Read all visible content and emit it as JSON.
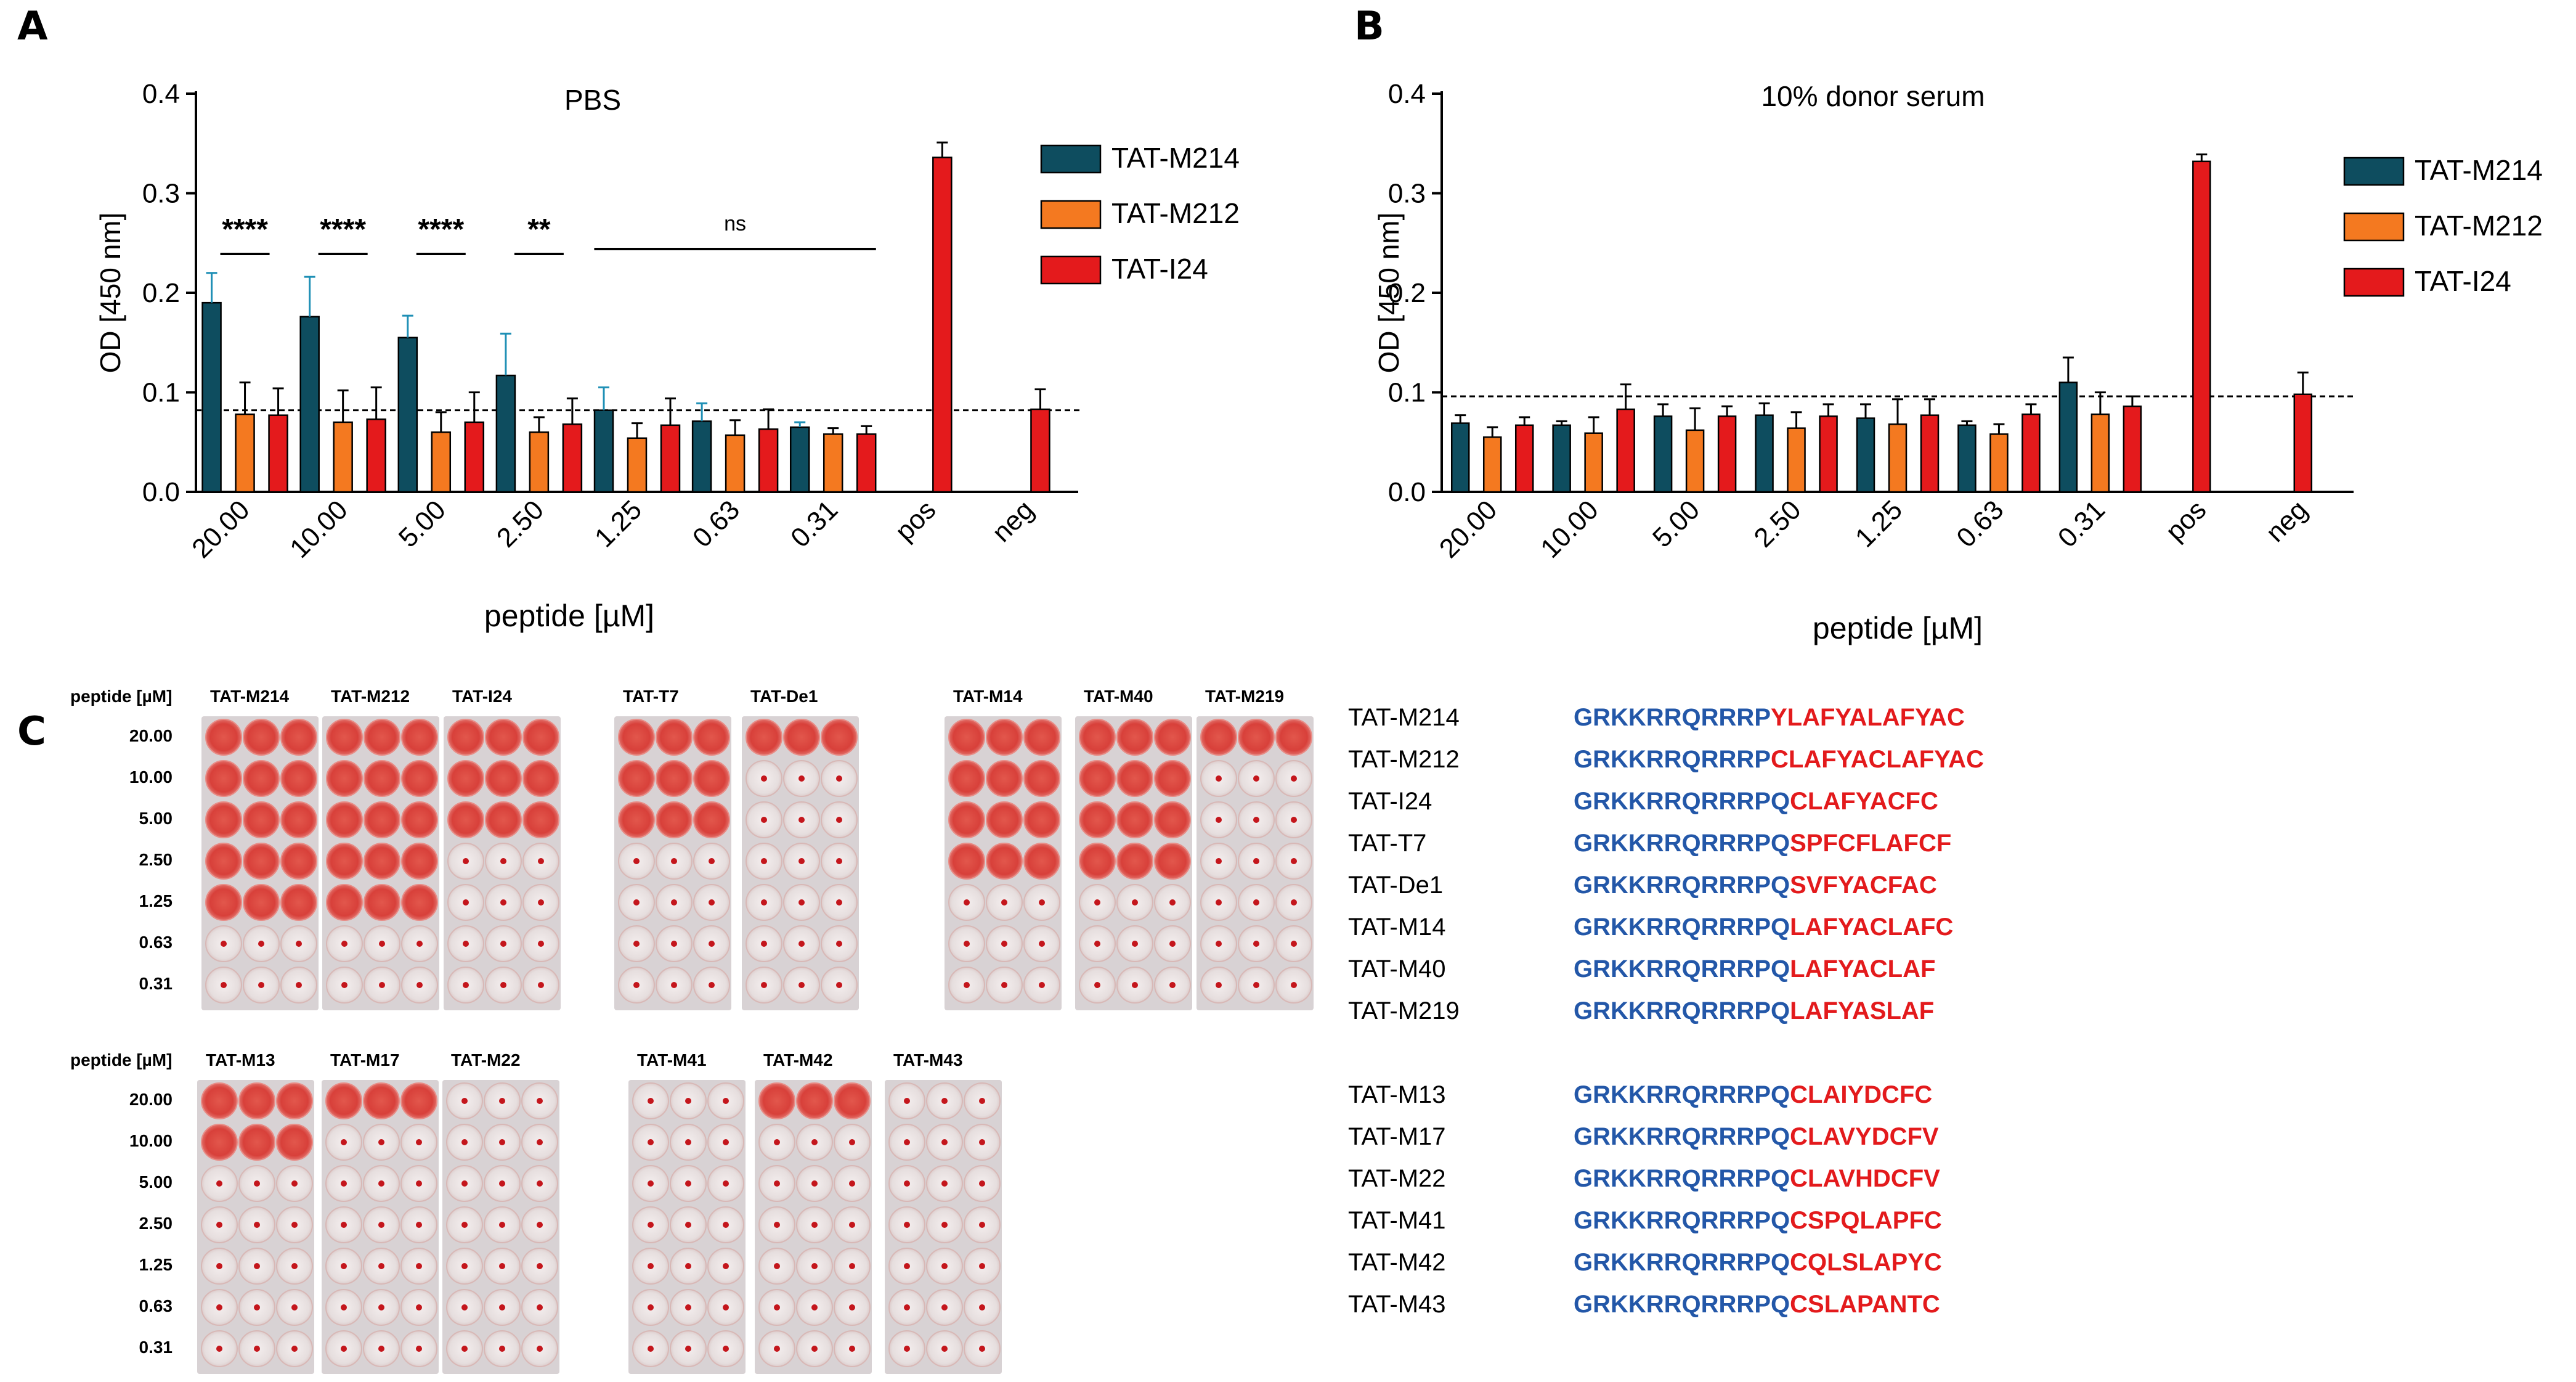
{
  "panels": {
    "a": "A",
    "b": "B",
    "c": "C"
  },
  "colors": {
    "M214": "#0e4d5f",
    "M212": "#f47920",
    "I24": "#e41a1c",
    "tat_seq": "#2357a8",
    "cargo_seq": "#e31a1c"
  },
  "chart_data": [
    {
      "type": "bar",
      "title": "PBS",
      "xlabel": "peptide [µM]",
      "ylabel": "OD [450 nm]",
      "ylim": [
        0,
        0.4
      ],
      "yticks": [
        "0.0",
        "0.1",
        "0.2",
        "0.3",
        "0.4"
      ],
      "categories": [
        "20.00",
        "10.00",
        "5.00",
        "2.50",
        "1.25",
        "0.63",
        "0.31",
        "pos",
        "neg"
      ],
      "series": [
        {
          "name": "TAT-M214",
          "values": [
            0.19,
            0.176,
            0.155,
            0.117,
            0.082,
            0.071,
            0.065,
            null,
            null
          ],
          "errors": [
            0.03,
            0.04,
            0.022,
            0.042,
            0.023,
            0.018,
            0.005,
            null,
            null
          ]
        },
        {
          "name": "TAT-M212",
          "values": [
            0.078,
            0.07,
            0.06,
            0.06,
            0.054,
            0.057,
            0.058,
            null,
            null
          ],
          "errors": [
            0.032,
            0.032,
            0.02,
            0.015,
            0.015,
            0.015,
            0.006,
            null,
            null
          ]
        },
        {
          "name": "TAT-I24",
          "values": [
            0.077,
            0.073,
            0.07,
            0.068,
            0.067,
            0.063,
            0.058,
            0.336,
            0.083
          ],
          "errors": [
            0.027,
            0.032,
            0.03,
            0.026,
            0.027,
            0.02,
            0.008,
            0.015,
            0.02
          ]
        }
      ],
      "threshold": 0.082,
      "legend": "top-right",
      "significance": [
        {
          "label": "****",
          "category": "20.00"
        },
        {
          "label": "****",
          "category": "10.00"
        },
        {
          "label": "****",
          "category": "5.00"
        },
        {
          "label": "**",
          "category": "2.50"
        },
        {
          "label": "ns",
          "from": "1.25",
          "to": "0.31"
        }
      ]
    },
    {
      "type": "bar",
      "title": "10% donor serum",
      "xlabel": "peptide [µM]",
      "ylabel": "OD [450 nm]",
      "ylim": [
        0,
        0.4
      ],
      "yticks": [
        "0.0",
        "0.1",
        "0.2",
        "0.3",
        "0.4"
      ],
      "categories": [
        "20.00",
        "10.00",
        "5.00",
        "2.50",
        "1.25",
        "0.63",
        "0.31",
        "pos",
        "neg"
      ],
      "series": [
        {
          "name": "TAT-M214",
          "values": [
            0.069,
            0.067,
            0.076,
            0.077,
            0.074,
            0.067,
            0.11,
            null,
            null
          ],
          "errors": [
            0.008,
            0.004,
            0.012,
            0.012,
            0.014,
            0.004,
            0.025,
            null,
            null
          ]
        },
        {
          "name": "TAT-M212",
          "values": [
            0.055,
            0.059,
            0.062,
            0.064,
            0.068,
            0.058,
            0.078,
            null,
            null
          ],
          "errors": [
            0.01,
            0.016,
            0.022,
            0.016,
            0.025,
            0.01,
            0.022,
            null,
            null
          ]
        },
        {
          "name": "TAT-I24",
          "values": [
            0.067,
            0.083,
            0.076,
            0.076,
            0.077,
            0.078,
            0.086,
            0.332,
            0.098
          ],
          "errors": [
            0.008,
            0.025,
            0.01,
            0.012,
            0.016,
            0.01,
            0.01,
            0.007,
            0.022
          ]
        }
      ],
      "threshold": 0.096,
      "legend": "top-right"
    }
  ],
  "plates": {
    "header_label": "peptide [µM]",
    "concentrations": [
      "20.00",
      "10.00",
      "5.00",
      "2.50",
      "1.25",
      "0.63",
      "0.31"
    ],
    "top_row": [
      {
        "name": "TAT-M214",
        "agglutination": 5
      },
      {
        "name": "TAT-M212",
        "agglutination": 5
      },
      {
        "name": "TAT-I24",
        "agglutination": 3
      },
      {
        "name": "TAT-T7",
        "agglutination": 3
      },
      {
        "name": "TAT-De1",
        "agglutination": 1
      },
      {
        "name": "TAT-M14",
        "agglutination": 4
      },
      {
        "name": "TAT-M40",
        "agglutination": 4
      },
      {
        "name": "TAT-M219",
        "agglutination": 1
      }
    ],
    "bottom_row": [
      {
        "name": "TAT-M13",
        "agglutination": 2
      },
      {
        "name": "TAT-M17",
        "agglutination": 1
      },
      {
        "name": "TAT-M22",
        "agglutination": 0
      },
      {
        "name": "TAT-M41",
        "agglutination": 0
      },
      {
        "name": "TAT-M42",
        "agglutination": 1
      },
      {
        "name": "TAT-M43",
        "agglutination": 0
      }
    ]
  },
  "sequences": [
    {
      "name": "TAT-M214",
      "tat": "GRKKRRQRRRP",
      "cargo": "YLAFYALAFYAC"
    },
    {
      "name": "TAT-M212",
      "tat": "GRKKRRQRRRP",
      "cargo": "CLAFYACLAFYAC"
    },
    {
      "name": "TAT-I24",
      "tat": "GRKKRRQRRRPQ",
      "cargo": "CLAFYACFC"
    },
    {
      "name": "TAT-T7",
      "tat": "GRKKRRQRRRPQ",
      "cargo": "SPFCFLAFCF"
    },
    {
      "name": "TAT-De1",
      "tat": "GRKKRRQRRRPQ",
      "cargo": "SVFYACFAC"
    },
    {
      "name": "TAT-M14",
      "tat": "GRKKRRQRRRPQ",
      "cargo": "LAFYACLAFC"
    },
    {
      "name": "TAT-M40",
      "tat": "GRKKRRQRRRPQ",
      "cargo": "LAFYACLAF"
    },
    {
      "name": "TAT-M219",
      "tat": "GRKKRRQRRRPQ",
      "cargo": "LAFYASLAF"
    },
    {
      "name": "TAT-M13",
      "tat": "GRKKRRQRRRPQ",
      "cargo": "CLAIYDCFC"
    },
    {
      "name": "TAT-M17",
      "tat": "GRKKRRQRRRPQ",
      "cargo": "CLAVYDCFV"
    },
    {
      "name": "TAT-M22",
      "tat": "GRKKRRQRRRPQ",
      "cargo": "CLAVHDCFV"
    },
    {
      "name": "TAT-M41",
      "tat": "GRKKRRQRRRPQ",
      "cargo": "CSPQLAPFC"
    },
    {
      "name": "TAT-M42",
      "tat": "GRKKRRQRRRPQ",
      "cargo": "CQLSLAPYC"
    },
    {
      "name": "TAT-M43",
      "tat": "GRKKRRQRRRPQ",
      "cargo": "CSLAPANTC"
    }
  ]
}
